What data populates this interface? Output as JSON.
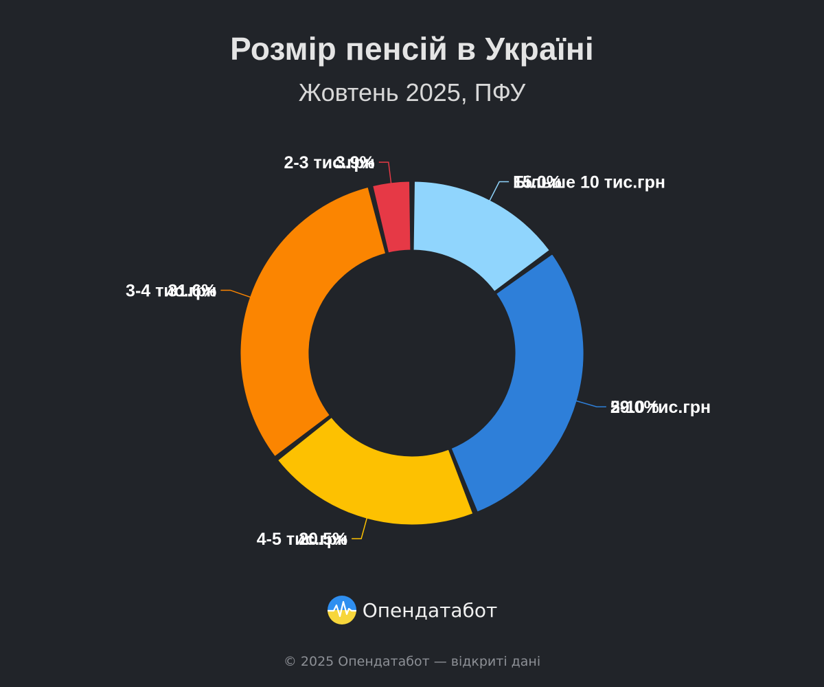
{
  "title": "Розмір пенсій в Україні",
  "subtitle": "Жовтень 2025, ПФУ",
  "chart_data": {
    "type": "pie",
    "variant": "donut",
    "categories": [
      "Більше 10 тис.грн",
      "5-10 тис.грн",
      "4-5 тис.грн",
      "3-4 тис.грн",
      "2-3 тис.грн"
    ],
    "values": [
      15.0,
      29.0,
      20.5,
      31.6,
      3.9
    ],
    "value_labels": [
      "15.0%",
      "29.0%",
      "20.5%",
      "31.6%",
      "3.9%"
    ],
    "colors": [
      "#90d5fd",
      "#2e7fd9",
      "#fdc101",
      "#fb8501",
      "#e63946"
    ],
    "start_angle_deg": 0,
    "direction": "clockwise"
  },
  "brand": {
    "name": "Опендатабот",
    "logo_icon": "opendatabot-logo-icon",
    "logo_colors": [
      "#2f8ff0",
      "#f7d63b"
    ]
  },
  "footer": "© 2025 Опендатабот — відкриті дані"
}
